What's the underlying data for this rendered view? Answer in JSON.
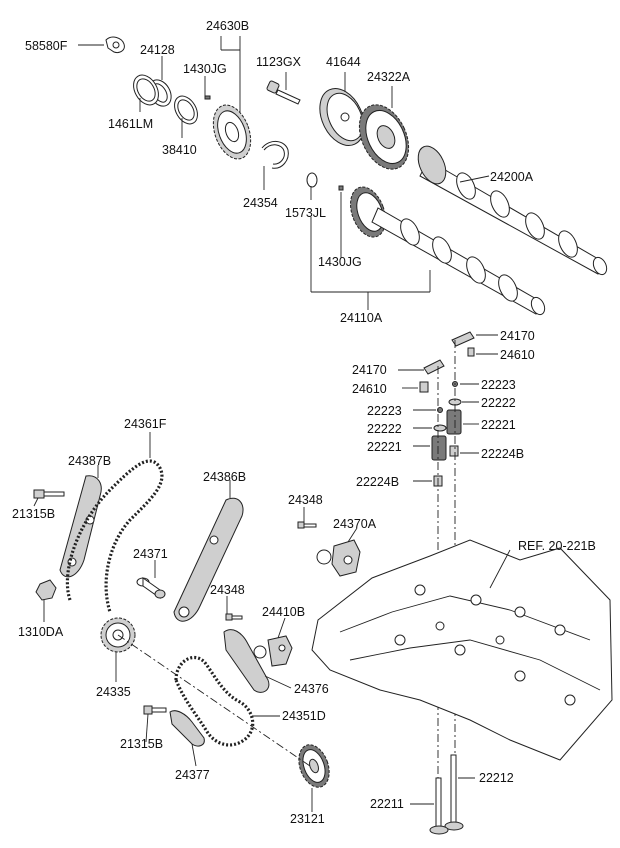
{
  "labels": {
    "p58580F": "58580F",
    "p24128": "24128",
    "p24630B": "24630B",
    "p1430JG_top": "1430JG",
    "p1123GX": "1123GX",
    "p41644": "41644",
    "p24322A": "24322A",
    "p1461LM": "1461LM",
    "p38410": "38410",
    "p24200A": "24200A",
    "p24354": "24354",
    "p1573JL": "1573JL",
    "p1430JG_bottom": "1430JG",
    "p24110A": "24110A",
    "p24170_right": "24170",
    "p24610_right": "24610",
    "p24170_left": "24170",
    "p24610_left": "24610",
    "p22223_right": "22223",
    "p22222_right": "22222",
    "p22223_left": "22223",
    "p22221_right": "22221",
    "p22222_left": "22222",
    "p22221_left": "22221",
    "p22224B_right": "22224B",
    "p22224B_left": "22224B",
    "p24361F": "24361F",
    "p24387B": "24387B",
    "p24386B": "24386B",
    "p24348_top": "24348",
    "p21315B_top": "21315B",
    "p24370A": "24370A",
    "p24371": "24371",
    "ref": "REF. 20-221B",
    "p1310DA": "1310DA",
    "p24348_mid": "24348",
    "p24410B": "24410B",
    "p24376": "24376",
    "p24335": "24335",
    "p24351D": "24351D",
    "p21315B_bottom": "21315B",
    "p24377": "24377",
    "p22212": "22212",
    "p22211": "22211",
    "p23121": "23121"
  }
}
